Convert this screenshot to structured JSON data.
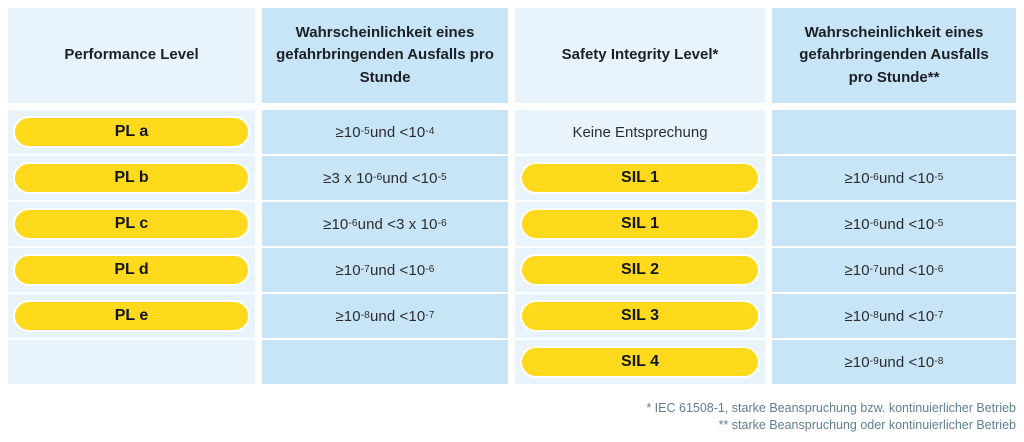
{
  "colors": {
    "light_blue": "#e9f3fb",
    "medium_blue": "#c7e5f6",
    "badge_yellow": "#ffd91c",
    "footnote_blue_gray": "#607f92"
  },
  "table": {
    "headers": [
      {
        "label": "Performance Level"
      },
      {
        "label": "Wahrscheinlichkeit eines gefahrbringenden Ausfalls pro Stunde"
      },
      {
        "label": "Safety Integrity Level*"
      },
      {
        "label": "Wahrscheinlichkeit eines gefahrbringenden Ausfalls pro Stunde**"
      }
    ],
    "rows": [
      {
        "pl": "PL a",
        "pl_prob": "≥10^{-5} und <10^{-4}",
        "sil": "Keine Entsprechung",
        "sil_prob": ""
      },
      {
        "pl": "PL b",
        "pl_prob": "≥3 x 10^{-6} und <10^{-5}",
        "sil": "SIL 1",
        "sil_prob": "≥10^{-6} und <10^{-5}"
      },
      {
        "pl": "PL c",
        "pl_prob": "≥10^{-6} und <3 x 10^{-6}",
        "sil": "SIL 1",
        "sil_prob": "≥10^{-6} und <10^{-5}"
      },
      {
        "pl": "PL d",
        "pl_prob": "≥10^{-7} und <10^{-6}",
        "sil": "SIL 2",
        "sil_prob": "≥10^{-7} und <10^{-6}"
      },
      {
        "pl": "PL e",
        "pl_prob": "≥10^{-8} und <10^{-7}",
        "sil": "SIL 3",
        "sil_prob": "≥10^{-8} und <10^{-7}"
      },
      {
        "pl": "",
        "pl_prob": "",
        "sil": "SIL 4",
        "sil_prob": "≥10^{-9} und <10^{-8}"
      }
    ]
  },
  "footnotes": [
    "* IEC 61508-1, starke Beanspruchung bzw. kontinuierlicher Betrieb",
    "** starke Beanspruchung oder kontinuierlicher Betrieb"
  ]
}
